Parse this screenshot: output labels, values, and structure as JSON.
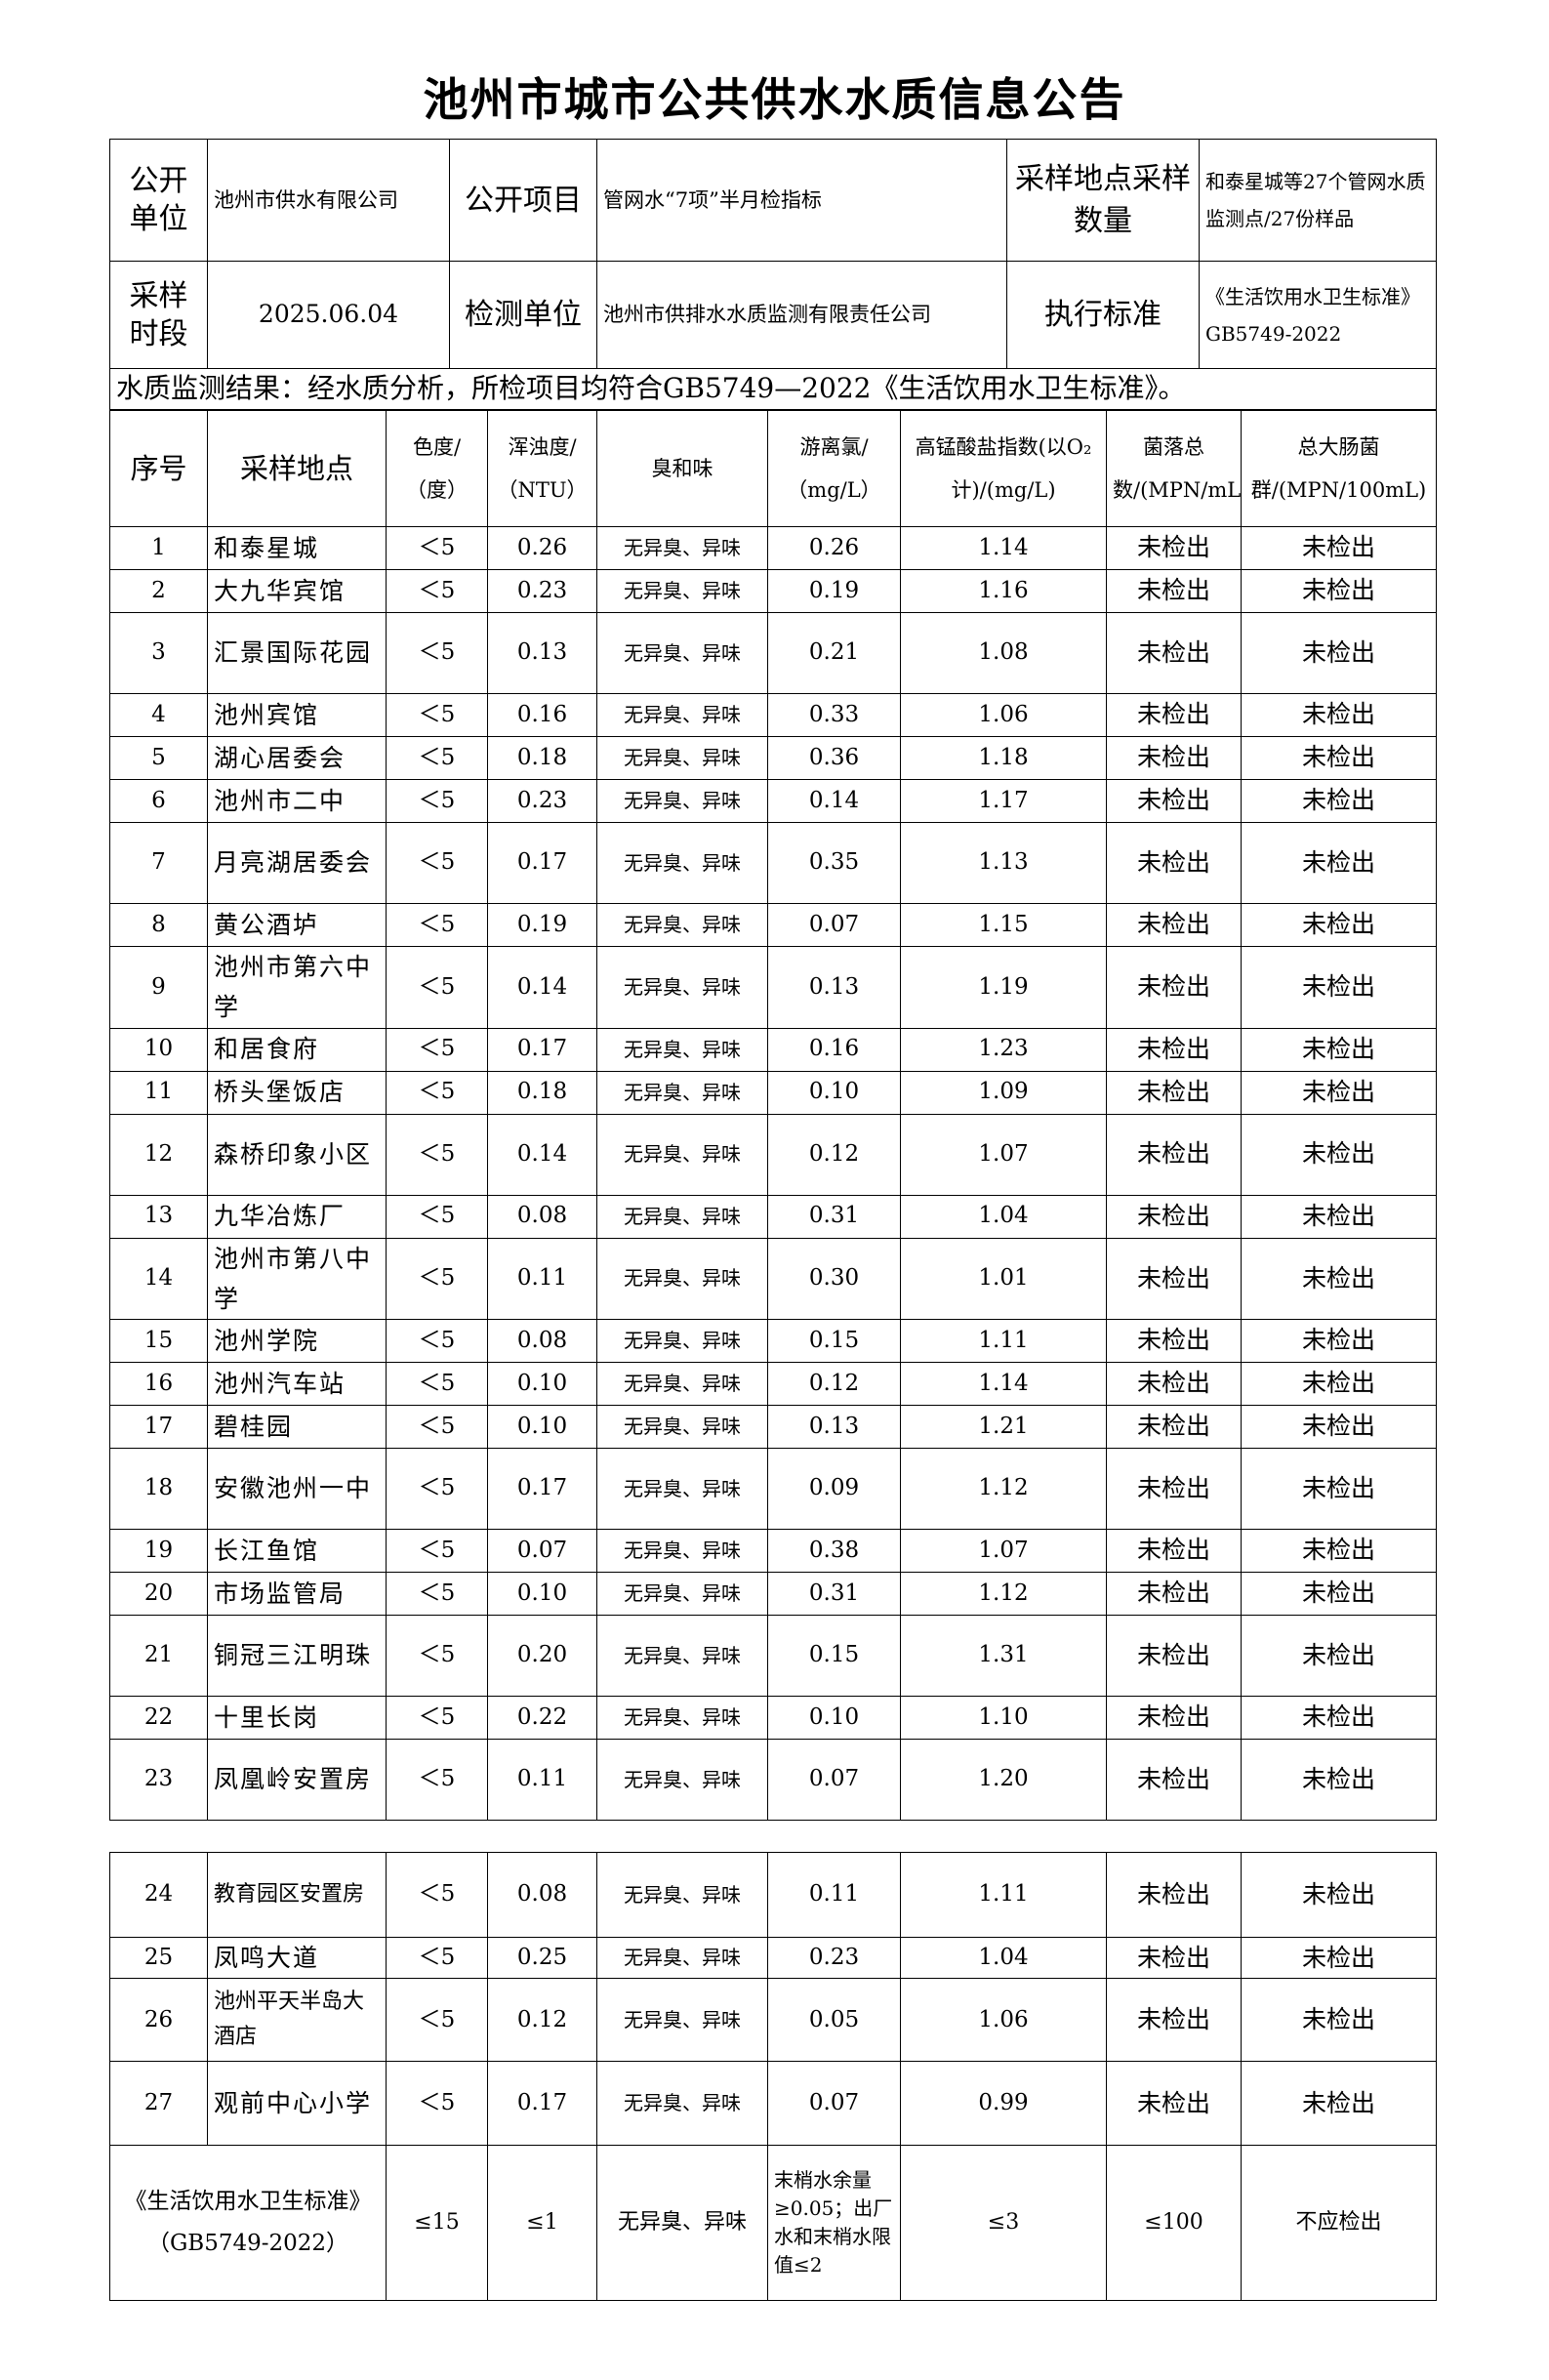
{
  "title": "池州市城市公共供水水质信息公告",
  "info": {
    "publisher_label": "公开单位",
    "publisher": "池州市供水有限公司",
    "item_label": "公开项目",
    "item": "管网水“7项”半月检指标",
    "sites_label": "采样地点采样数量",
    "sites": "和泰星城等27个管网水质监测点/27份样品",
    "period_label": "采样时段",
    "period": "2025.06.04",
    "lab_label": "检测单位",
    "lab": "池州市供排水水质监测有限责任公司",
    "standard_label": "执行标准",
    "standard": "《生活饮用水卫生标准》GB5749-2022"
  },
  "result": "水质监测结果：经水质分析，所检项目均符合GB5749—2022《生活饮用水卫生标准》。",
  "columns": [
    "序号",
    "采样地点",
    "色度/（度）",
    "浑浊度/（NTU）",
    "臭和味",
    "游离氯/（mg/L）",
    "高锰酸盐指数(以O₂计)/(mg/L)",
    "菌落总数/(MPN/mL)",
    "总大肠菌群/(MPN/100mL)"
  ],
  "rows": [
    [
      "1",
      "和泰星城",
      "＜5",
      "0.26",
      "无异臭、异味",
      "0.26",
      "1.14",
      "未检出",
      "未检出"
    ],
    [
      "2",
      "大九华宾馆",
      "＜5",
      "0.23",
      "无异臭、异味",
      "0.19",
      "1.16",
      "未检出",
      "未检出"
    ],
    [
      "3",
      "汇景国际花园",
      "＜5",
      "0.13",
      "无异臭、异味",
      "0.21",
      "1.08",
      "未检出",
      "未检出"
    ],
    [
      "4",
      "池州宾馆",
      "＜5",
      "0.16",
      "无异臭、异味",
      "0.33",
      "1.06",
      "未检出",
      "未检出"
    ],
    [
      "5",
      "湖心居委会",
      "＜5",
      "0.18",
      "无异臭、异味",
      "0.36",
      "1.18",
      "未检出",
      "未检出"
    ],
    [
      "6",
      "池州市二中",
      "＜5",
      "0.23",
      "无异臭、异味",
      "0.14",
      "1.17",
      "未检出",
      "未检出"
    ],
    [
      "7",
      "月亮湖居委会",
      "＜5",
      "0.17",
      "无异臭、异味",
      "0.35",
      "1.13",
      "未检出",
      "未检出"
    ],
    [
      "8",
      "黄公酒垆",
      "＜5",
      "0.19",
      "无异臭、异味",
      "0.07",
      "1.15",
      "未检出",
      "未检出"
    ],
    [
      "9",
      "池州市第六中学",
      "＜5",
      "0.14",
      "无异臭、异味",
      "0.13",
      "1.19",
      "未检出",
      "未检出"
    ],
    [
      "10",
      "和居食府",
      "＜5",
      "0.17",
      "无异臭、异味",
      "0.16",
      "1.23",
      "未检出",
      "未检出"
    ],
    [
      "11",
      "桥头堡饭店",
      "＜5",
      "0.18",
      "无异臭、异味",
      "0.10",
      "1.09",
      "未检出",
      "未检出"
    ],
    [
      "12",
      "森桥印象小区",
      "＜5",
      "0.14",
      "无异臭、异味",
      "0.12",
      "1.07",
      "未检出",
      "未检出"
    ],
    [
      "13",
      "九华冶炼厂",
      "＜5",
      "0.08",
      "无异臭、异味",
      "0.31",
      "1.04",
      "未检出",
      "未检出"
    ],
    [
      "14",
      "池州市第八中学",
      "＜5",
      "0.11",
      "无异臭、异味",
      "0.30",
      "1.01",
      "未检出",
      "未检出"
    ],
    [
      "15",
      "池州学院",
      "＜5",
      "0.08",
      "无异臭、异味",
      "0.15",
      "1.11",
      "未检出",
      "未检出"
    ],
    [
      "16",
      "池州汽车站",
      "＜5",
      "0.10",
      "无异臭、异味",
      "0.12",
      "1.14",
      "未检出",
      "未检出"
    ],
    [
      "17",
      "碧桂园",
      "＜5",
      "0.10",
      "无异臭、异味",
      "0.13",
      "1.21",
      "未检出",
      "未检出"
    ],
    [
      "18",
      "安徽池州一中",
      "＜5",
      "0.17",
      "无异臭、异味",
      "0.09",
      "1.12",
      "未检出",
      "未检出"
    ],
    [
      "19",
      "长江鱼馆",
      "＜5",
      "0.07",
      "无异臭、异味",
      "0.38",
      "1.07",
      "未检出",
      "未检出"
    ],
    [
      "20",
      "市场监管局",
      "＜5",
      "0.10",
      "无异臭、异味",
      "0.31",
      "1.12",
      "未检出",
      "未检出"
    ],
    [
      "21",
      "铜冠三江明珠",
      "＜5",
      "0.20",
      "无异臭、异味",
      "0.15",
      "1.31",
      "未检出",
      "未检出"
    ],
    [
      "22",
      "十里长岗",
      "＜5",
      "0.22",
      "无异臭、异味",
      "0.10",
      "1.10",
      "未检出",
      "未检出"
    ],
    [
      "23",
      "凤凰岭安置房",
      "＜5",
      "0.11",
      "无异臭、异味",
      "0.07",
      "1.20",
      "未检出",
      "未检出"
    ],
    [
      "24",
      "教育园区安置房",
      "＜5",
      "0.08",
      "无异臭、异味",
      "0.11",
      "1.11",
      "未检出",
      "未检出"
    ],
    [
      "25",
      "凤鸣大道",
      "＜5",
      "0.25",
      "无异臭、异味",
      "0.23",
      "1.04",
      "未检出",
      "未检出"
    ],
    [
      "26",
      "池州平天半岛大酒店",
      "＜5",
      "0.12",
      "无异臭、异味",
      "0.05",
      "1.06",
      "未检出",
      "未检出"
    ],
    [
      "27",
      "观前中心小学",
      "＜5",
      "0.17",
      "无异臭、异味",
      "0.07",
      "0.99",
      "未检出",
      "未检出"
    ]
  ],
  "standard_row": [
    "《生活饮用水卫生标准》（GB5749-2022）",
    "≤15",
    "≤1",
    "无异臭、异味",
    "末梢水余量≥0.05；出厂水和末梢水限值≤2",
    "≤3",
    "≤100",
    "不应检出"
  ]
}
